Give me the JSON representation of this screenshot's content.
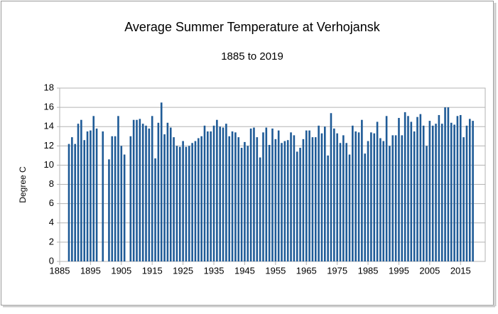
{
  "chart_data": {
    "type": "bar",
    "title": "Average Summer Temperature at Verhojansk",
    "subtitle": "1885 to 2019",
    "y_label": "Degree C",
    "color": "#1f5b97",
    "grid": true,
    "x": [
      1885,
      1886,
      1887,
      1888,
      1889,
      1890,
      1891,
      1892,
      1893,
      1894,
      1895,
      1896,
      1897,
      1898,
      1899,
      1900,
      1901,
      1902,
      1903,
      1904,
      1905,
      1906,
      1907,
      1908,
      1909,
      1910,
      1911,
      1912,
      1913,
      1914,
      1915,
      1916,
      1917,
      1918,
      1919,
      1920,
      1921,
      1922,
      1923,
      1924,
      1925,
      1926,
      1927,
      1928,
      1929,
      1930,
      1931,
      1932,
      1933,
      1934,
      1935,
      1936,
      1937,
      1938,
      1939,
      1940,
      1941,
      1942,
      1943,
      1944,
      1945,
      1946,
      1947,
      1948,
      1949,
      1950,
      1951,
      1952,
      1953,
      1954,
      1955,
      1956,
      1957,
      1958,
      1959,
      1960,
      1961,
      1962,
      1963,
      1964,
      1965,
      1966,
      1967,
      1968,
      1969,
      1970,
      1971,
      1972,
      1973,
      1974,
      1975,
      1976,
      1977,
      1978,
      1979,
      1980,
      1981,
      1982,
      1983,
      1984,
      1985,
      1986,
      1987,
      1988,
      1989,
      1990,
      1991,
      1992,
      1993,
      1994,
      1995,
      1996,
      1997,
      1998,
      1999,
      2000,
      2001,
      2002,
      2003,
      2004,
      2005,
      2006,
      2007,
      2008,
      2009,
      2010,
      2011,
      2012,
      2013,
      2014,
      2015,
      2016,
      2017,
      2018,
      2019
    ],
    "values": [
      null,
      null,
      null,
      12.2,
      12.9,
      12.2,
      14.3,
      14.7,
      12.6,
      13.5,
      13.6,
      15.1,
      13.8,
      null,
      13.5,
      null,
      10.6,
      13.0,
      13.0,
      15.1,
      12.0,
      11.1,
      null,
      13.0,
      14.7,
      14.7,
      14.8,
      14.3,
      14.1,
      13.8,
      15.1,
      10.7,
      14.4,
      16.5,
      13.2,
      14.4,
      13.9,
      12.9,
      12.0,
      11.9,
      12.5,
      11.9,
      12.0,
      12.3,
      12.5,
      12.8,
      13.0,
      14.1,
      13.5,
      13.5,
      14.1,
      14.7,
      14.0,
      13.9,
      14.3,
      13.0,
      13.5,
      13.4,
      12.9,
      11.8,
      12.4,
      12.0,
      13.8,
      13.9,
      12.9,
      10.8,
      13.4,
      13.9,
      12.1,
      13.8,
      12.7,
      13.6,
      12.3,
      12.5,
      12.6,
      13.4,
      13.1,
      11.4,
      11.8,
      12.7,
      13.6,
      13.6,
      12.9,
      12.9,
      14.1,
      13.3,
      14.0,
      11.0,
      15.4,
      13.8,
      13.3,
      12.3,
      13.1,
      12.3,
      11.1,
      14.1,
      13.5,
      13.4,
      14.7,
      11.2,
      12.5,
      13.4,
      13.3,
      14.5,
      12.8,
      12.5,
      15.1,
      12.0,
      13.1,
      13.1,
      14.9,
      13.1,
      15.5,
      15.1,
      14.5,
      13.5,
      15.0,
      15.3,
      14.1,
      12.0,
      14.6,
      14.1,
      14.3,
      15.2,
      14.3,
      16.0,
      16.0,
      14.4,
      14.2,
      15.1,
      15.2,
      12.9,
      14.1,
      14.8,
      14.6
    ],
    "xlim": [
      1885,
      2023
    ],
    "xticks": [
      1885,
      1895,
      1905,
      1915,
      1925,
      1935,
      1945,
      1955,
      1965,
      1975,
      1985,
      1995,
      2005,
      2015
    ],
    "ylim": [
      0,
      18
    ],
    "yticks": [
      0,
      2,
      4,
      6,
      8,
      10,
      12,
      14,
      16,
      18
    ]
  }
}
